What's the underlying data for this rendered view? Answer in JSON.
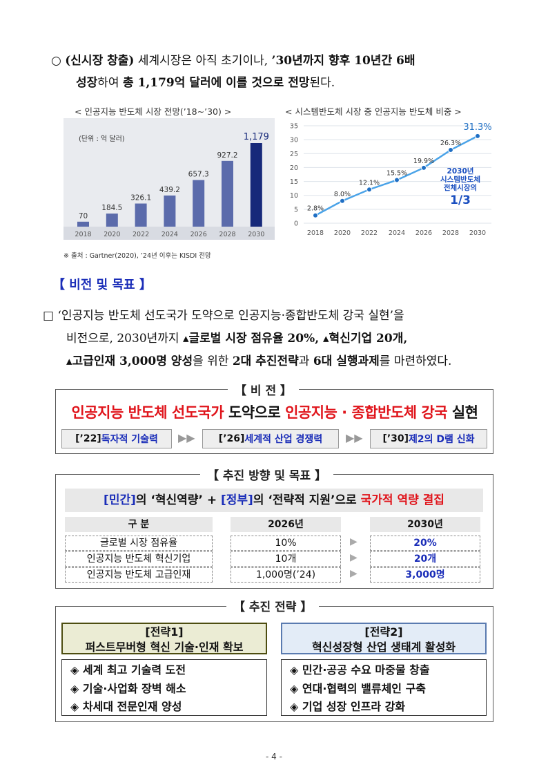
{
  "intro": {
    "bullet": "○",
    "label": "(신시장 창출)",
    "text_a": " 세계시장은 아직 초기이나, ",
    "bold_b": "’30년까지 향후 10년간 6배",
    "bold_c": "성장",
    "text_d": "하여 ",
    "bold_e": "총 1,179억 달러에 이를 것으로 전망",
    "text_f": "된다."
  },
  "chart1_title": "<  인공지능  반도체  시장  전망(’18~’30)  >",
  "chart2_title": "<  시스템반도체  시장  중  인공지능  반도체  비중  >",
  "chart_data": [
    {
      "type": "bar",
      "title": "인공지능 반도체 시장 전망(’18~’30)",
      "unit_note": "(단위 : 억 달러)",
      "categories": [
        "2018",
        "2020",
        "2022",
        "2024",
        "2026",
        "2028",
        "2030"
      ],
      "values": [
        70,
        184.5,
        326.1,
        439.2,
        657.3,
        927.2,
        1179
      ],
      "value_labels": [
        "70",
        "184.5",
        "326.1",
        "439.2",
        "657.3",
        "927.2",
        "1,179"
      ],
      "colors": {
        "bar": "#5b6bab",
        "last_bar": "#17297a",
        "background": "#e9ebef",
        "axis_band": "#d8dbe2"
      }
    },
    {
      "type": "line",
      "title": "시스템반도체 시장 중 인공지능 반도체 비중",
      "categories": [
        "2018",
        "2020",
        "2022",
        "2024",
        "2026",
        "2028",
        "2030"
      ],
      "values": [
        2.8,
        8.0,
        12.1,
        15.5,
        19.9,
        26.3,
        31.3
      ],
      "value_labels": [
        "2.8%",
        "8.0%",
        "12.1%",
        "15.5%",
        "19.9%",
        "26.3%",
        "31.3%"
      ],
      "y_ticks": [
        "35",
        "30",
        "25",
        "20",
        "15",
        "10",
        "5",
        "0"
      ],
      "ylim": [
        0,
        35
      ],
      "grid": true,
      "annotation": [
        "2030년",
        "시스템반도체",
        "전체시장의",
        "1/3"
      ],
      "colors": {
        "line": "#4aa3e8",
        "point": "#1f6fc4",
        "annotation": "#1a4fc0"
      }
    }
  ],
  "source_note": "※ 출처 : Gartner(2020), ’24년 이후는 KISDI 전망",
  "section_heading": "【 비전 및 목표 】",
  "vision_para": {
    "box": "□",
    "line1": "‘인공지능 반도체 선도국가 도약으로 인공지능·종합반도체 강국 실현’을",
    "line2a": "비전으로, 2030년까지 ",
    "line2b": "▴글로벌 시장 점유율 20%, ▴혁신기업 20개,",
    "line3a": "▴고급인재 3,000명 양성",
    "line3b": "을 위한 ",
    "line3c": "2대 추진전략",
    "line3d": "과 ",
    "line3e": "6대 실행과제",
    "line3f": "를 마련하였다."
  },
  "vision_box": {
    "title": "【 비      전 】",
    "slogan_red1": "인공지능 반도체 선도국가",
    "slogan_black1": " 도약으로 ",
    "slogan_red2": "인공지능 · 종합반도체 강국",
    "slogan_black2": " 실현",
    "steps": [
      {
        "year": "[’22]",
        "text": " 독자적 기술력"
      },
      {
        "year": "[’26]",
        "text": " 세계적 산업 경쟁력"
      },
      {
        "year": "[’30]",
        "text": " 제2의 D램 신화"
      }
    ]
  },
  "goals_box": {
    "title": "【 추진 방향 및 목표 】",
    "banner": {
      "p1": "[민간]",
      "p2": "의 ‘혁신역량’ + ",
      "p3": "[정부]",
      "p4": "의 ‘전략적 지원’으로 ",
      "p5": "국가적 역량 결집"
    },
    "headers": [
      "구  분",
      "2026년",
      "2030년"
    ],
    "rows": [
      {
        "label": "글로벌 시장 점유율",
        "y2026": "10%",
        "y2030": "20%"
      },
      {
        "label": "인공지능 반도체 혁신기업",
        "y2026": "10개",
        "y2030": "20개"
      },
      {
        "label": "인공지능 반도체 고급인재",
        "y2026": "1,000명(’24)",
        "y2030": "3,000명"
      }
    ]
  },
  "strategy_box": {
    "title": "【 추진 전략 】",
    "strategies": [
      {
        "tag": "[전략1]",
        "name": "퍼스트무버형 혁신 기술·인재 확보",
        "items": [
          "◈ 세계 최고 기술력 도전",
          "◈ 기술·사업화 장벽 해소",
          "◈ 차세대 전문인재 양성"
        ]
      },
      {
        "tag": "[전략2]",
        "name": "혁신성장형 산업 생태계 활성화",
        "items": [
          "◈ 민간·공공 수요 마중물 창출",
          "◈ 연대·협력의 밸류체인 구축",
          "◈ 기업 성장 인프라 강화"
        ]
      }
    ]
  },
  "page_number": "- 4 -"
}
